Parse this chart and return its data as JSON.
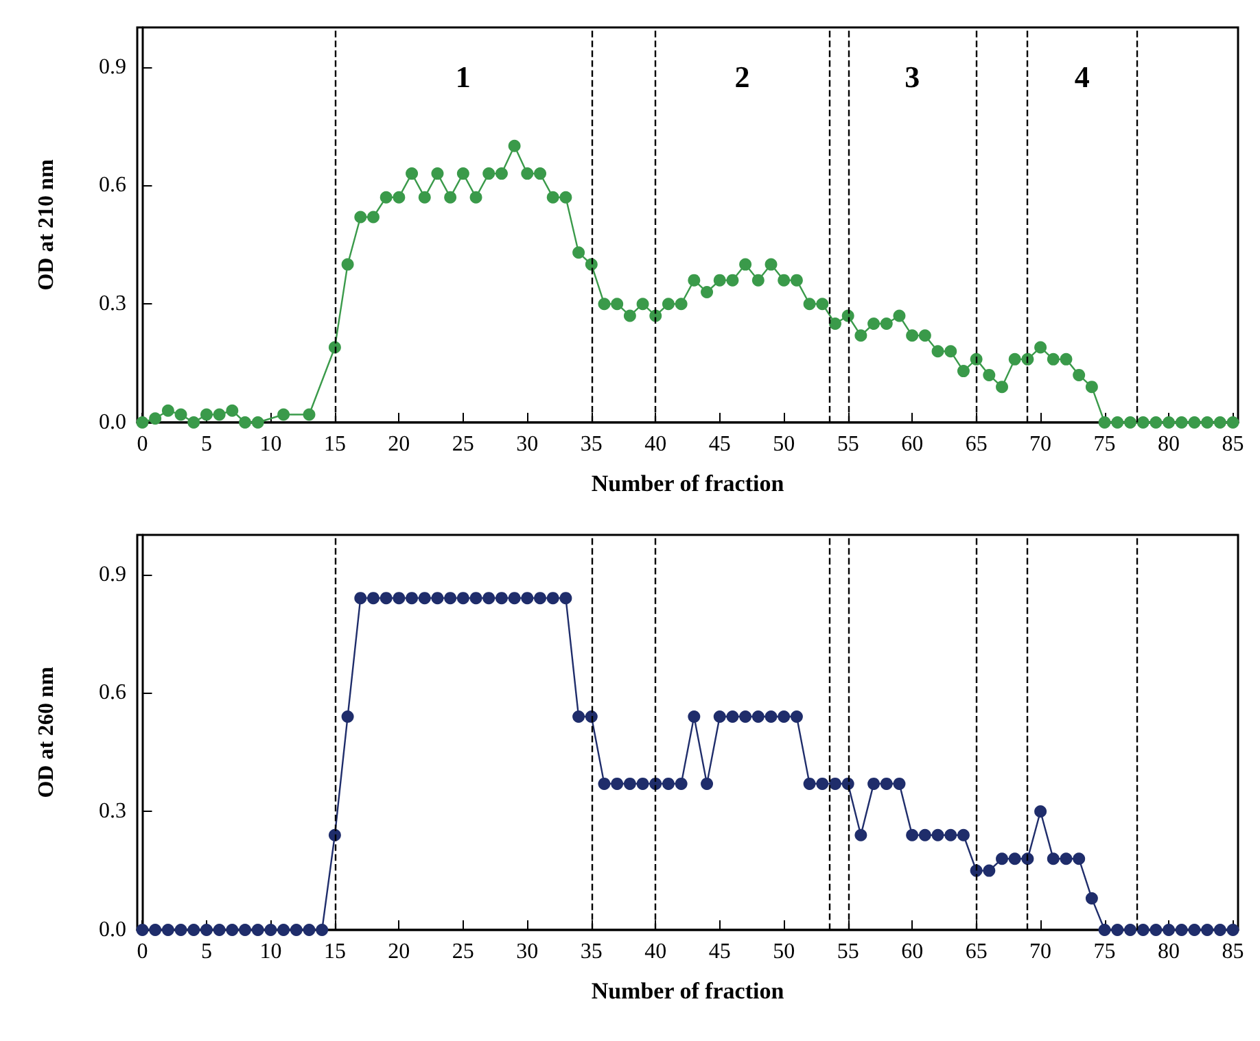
{
  "chart_data": [
    {
      "type": "line",
      "xlabel": "Number of fraction",
      "ylabel": "OD at 210 nm",
      "x": [
        0,
        1,
        2,
        3,
        4,
        5,
        6,
        7,
        8,
        9,
        10,
        11,
        12,
        13,
        14,
        15,
        16,
        17,
        18,
        19,
        20,
        21,
        22,
        23,
        24,
        25,
        26,
        27,
        28,
        29,
        30,
        31,
        32,
        33,
        34,
        35,
        36,
        37,
        38,
        39,
        40,
        41,
        42,
        43,
        44,
        45,
        46,
        47,
        48,
        49,
        50,
        51,
        52,
        53,
        54,
        55,
        56,
        57,
        58,
        59,
        60,
        61,
        62,
        63,
        64,
        65,
        66,
        67,
        68,
        69,
        70,
        71,
        72,
        73,
        74,
        75,
        76,
        77,
        78,
        79,
        80,
        81,
        82,
        83,
        84,
        85
      ],
      "series": [
        {
          "color": "#3a9a4a",
          "values": [
            0,
            0.01,
            0.03,
            0.02,
            0,
            0.02,
            0.02,
            0.03,
            0,
            0,
            null,
            0.02,
            null,
            0.02,
            null,
            0.19,
            0.4,
            0.52,
            0.52,
            0.57,
            0.57,
            0.63,
            0.57,
            0.63,
            0.57,
            0.63,
            0.57,
            0.63,
            0.63,
            0.7,
            0.63,
            0.63,
            0.57,
            0.57,
            0.43,
            0.4,
            0.3,
            0.3,
            0.27,
            0.3,
            0.27,
            0.3,
            0.3,
            0.36,
            0.33,
            0.36,
            0.36,
            0.4,
            0.36,
            0.4,
            0.36,
            0.36,
            0.3,
            0.3,
            0.25,
            0.27,
            0.22,
            0.25,
            0.25,
            0.27,
            0.22,
            0.22,
            0.18,
            0.18,
            0.13,
            0.16,
            0.12,
            0.09,
            0.16,
            0.16,
            0.19,
            0.16,
            0.16,
            0.12,
            0.09,
            0,
            0,
            0,
            0,
            0,
            0,
            0,
            0,
            0,
            0,
            0
          ]
        }
      ],
      "xlim": [
        -0.4,
        85.4
      ],
      "xticks": [
        0,
        5,
        10,
        15,
        20,
        25,
        30,
        35,
        40,
        45,
        50,
        55,
        60,
        65,
        70,
        75,
        80,
        85
      ],
      "ylim": [
        0,
        1
      ],
      "yticks": [
        {
          "value": 0,
          "label": "0.0"
        },
        0.3,
        0.6,
        0.9
      ],
      "marker": "circle",
      "line_style": "solid",
      "grid": false,
      "ref_lines": [
        {
          "axis": "x",
          "value": 15,
          "line_style": "dashed",
          "color": "#000000"
        },
        {
          "axis": "x",
          "value": 35,
          "line_style": "dashed",
          "color": "#000000"
        },
        {
          "axis": "x",
          "value": 40,
          "line_style": "dashed",
          "color": "#000000"
        },
        {
          "axis": "x",
          "value": 53.5,
          "line_style": "dashed",
          "color": "#000000"
        },
        {
          "axis": "x",
          "value": 55,
          "line_style": "dashed",
          "color": "#000000"
        },
        {
          "axis": "x",
          "value": 65,
          "line_style": "dashed",
          "color": "#000000"
        },
        {
          "axis": "x",
          "value": 69,
          "line_style": "dashed",
          "color": "#000000"
        },
        {
          "axis": "x",
          "value": 77.5,
          "line_style": "dashed",
          "color": "#000000"
        }
      ],
      "annotations": [
        "1",
        "2",
        "3",
        "4"
      ]
    },
    {
      "type": "line",
      "xlabel": "Number of fraction",
      "ylabel": "OD at 260 nm",
      "x": [
        0,
        1,
        2,
        3,
        4,
        5,
        6,
        7,
        8,
        9,
        10,
        11,
        12,
        13,
        14,
        15,
        16,
        17,
        18,
        19,
        20,
        21,
        22,
        23,
        24,
        25,
        26,
        27,
        28,
        29,
        30,
        31,
        32,
        33,
        34,
        35,
        36,
        37,
        38,
        39,
        40,
        41,
        42,
        43,
        44,
        45,
        46,
        47,
        48,
        49,
        50,
        51,
        52,
        53,
        54,
        55,
        56,
        57,
        58,
        59,
        60,
        61,
        62,
        63,
        64,
        65,
        66,
        67,
        68,
        69,
        70,
        71,
        72,
        73,
        74,
        75,
        76,
        77,
        78,
        79,
        80,
        81,
        82,
        83,
        84,
        85
      ],
      "series": [
        {
          "color": "#1f2d6b",
          "values": [
            0,
            0,
            0,
            0,
            0,
            0,
            0,
            0,
            0,
            0,
            0,
            0,
            0,
            0,
            0,
            0.24,
            0.54,
            0.84,
            0.84,
            0.84,
            0.84,
            0.84,
            0.84,
            0.84,
            0.84,
            0.84,
            0.84,
            0.84,
            0.84,
            0.84,
            0.84,
            0.84,
            0.84,
            0.84,
            0.54,
            0.54,
            0.37,
            0.37,
            0.37,
            0.37,
            0.37,
            0.37,
            0.37,
            0.54,
            0.37,
            0.54,
            0.54,
            0.54,
            0.54,
            0.54,
            0.54,
            0.54,
            0.37,
            0.37,
            0.37,
            0.37,
            0.24,
            0.37,
            0.37,
            0.37,
            0.24,
            0.24,
            0.24,
            0.24,
            0.24,
            0.15,
            0.15,
            0.18,
            0.18,
            0.18,
            0.3,
            0.18,
            0.18,
            0.18,
            0.08,
            0,
            0,
            0,
            0,
            0,
            0,
            0,
            0,
            0,
            0,
            0
          ]
        }
      ],
      "xlim": [
        -0.4,
        85.4
      ],
      "xticks": [
        0,
        5,
        10,
        15,
        20,
        25,
        30,
        35,
        40,
        45,
        50,
        55,
        60,
        65,
        70,
        75,
        80,
        85
      ],
      "ylim": [
        0,
        1
      ],
      "yticks": [
        {
          "value": 0,
          "label": "0.0"
        },
        0.3,
        0.6,
        0.9
      ],
      "marker": "circle",
      "line_style": "solid",
      "grid": false,
      "ref_lines": [
        {
          "axis": "x",
          "value": 15,
          "line_style": "dashed",
          "color": "#000000"
        },
        {
          "axis": "x",
          "value": 35,
          "line_style": "dashed",
          "color": "#000000"
        },
        {
          "axis": "x",
          "value": 40,
          "line_style": "dashed",
          "color": "#000000"
        },
        {
          "axis": "x",
          "value": 53.5,
          "line_style": "dashed",
          "color": "#000000"
        },
        {
          "axis": "x",
          "value": 55,
          "line_style": "dashed",
          "color": "#000000"
        },
        {
          "axis": "x",
          "value": 65,
          "line_style": "dashed",
          "color": "#000000"
        },
        {
          "axis": "x",
          "value": 69,
          "line_style": "dashed",
          "color": "#000000"
        },
        {
          "axis": "x",
          "value": 77.5,
          "line_style": "dashed",
          "color": "#000000"
        }
      ]
    }
  ]
}
